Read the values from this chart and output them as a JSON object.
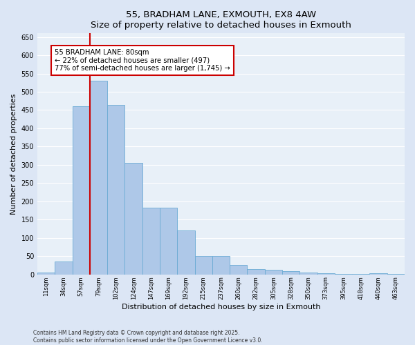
{
  "title": "55, BRADHAM LANE, EXMOUTH, EX8 4AW",
  "subtitle": "Size of property relative to detached houses in Exmouth",
  "xlabel": "Distribution of detached houses by size in Exmouth",
  "ylabel": "Number of detached properties",
  "bar_color": "#aec8e8",
  "bar_edge_color": "#6aaad4",
  "background_color": "#dce6f5",
  "plot_bg_color": "#e8f0f8",
  "grid_color": "#ffffff",
  "categories": [
    "11sqm",
    "34sqm",
    "57sqm",
    "79sqm",
    "102sqm",
    "124sqm",
    "147sqm",
    "169sqm",
    "192sqm",
    "215sqm",
    "237sqm",
    "260sqm",
    "282sqm",
    "305sqm",
    "328sqm",
    "350sqm",
    "373sqm",
    "395sqm",
    "418sqm",
    "440sqm",
    "463sqm"
  ],
  "values": [
    5,
    35,
    460,
    530,
    465,
    305,
    183,
    183,
    120,
    50,
    50,
    26,
    15,
    12,
    8,
    5,
    3,
    2,
    1,
    4,
    1
  ],
  "ylim": [
    0,
    660
  ],
  "yticks": [
    0,
    50,
    100,
    150,
    200,
    250,
    300,
    350,
    400,
    450,
    500,
    550,
    600,
    650
  ],
  "property_line_x": 3.0,
  "red_line_color": "#cc0000",
  "annotation_title": "55 BRADHAM LANE: 80sqm",
  "annotation_line1": "← 22% of detached houses are smaller (497)",
  "annotation_line2": "77% of semi-detached houses are larger (1,745) →",
  "annotation_box_color": "#ffffff",
  "annotation_box_edge": "#cc0000",
  "footer_line1": "Contains HM Land Registry data © Crown copyright and database right 2025.",
  "footer_line2": "Contains public sector information licensed under the Open Government Licence v3.0."
}
